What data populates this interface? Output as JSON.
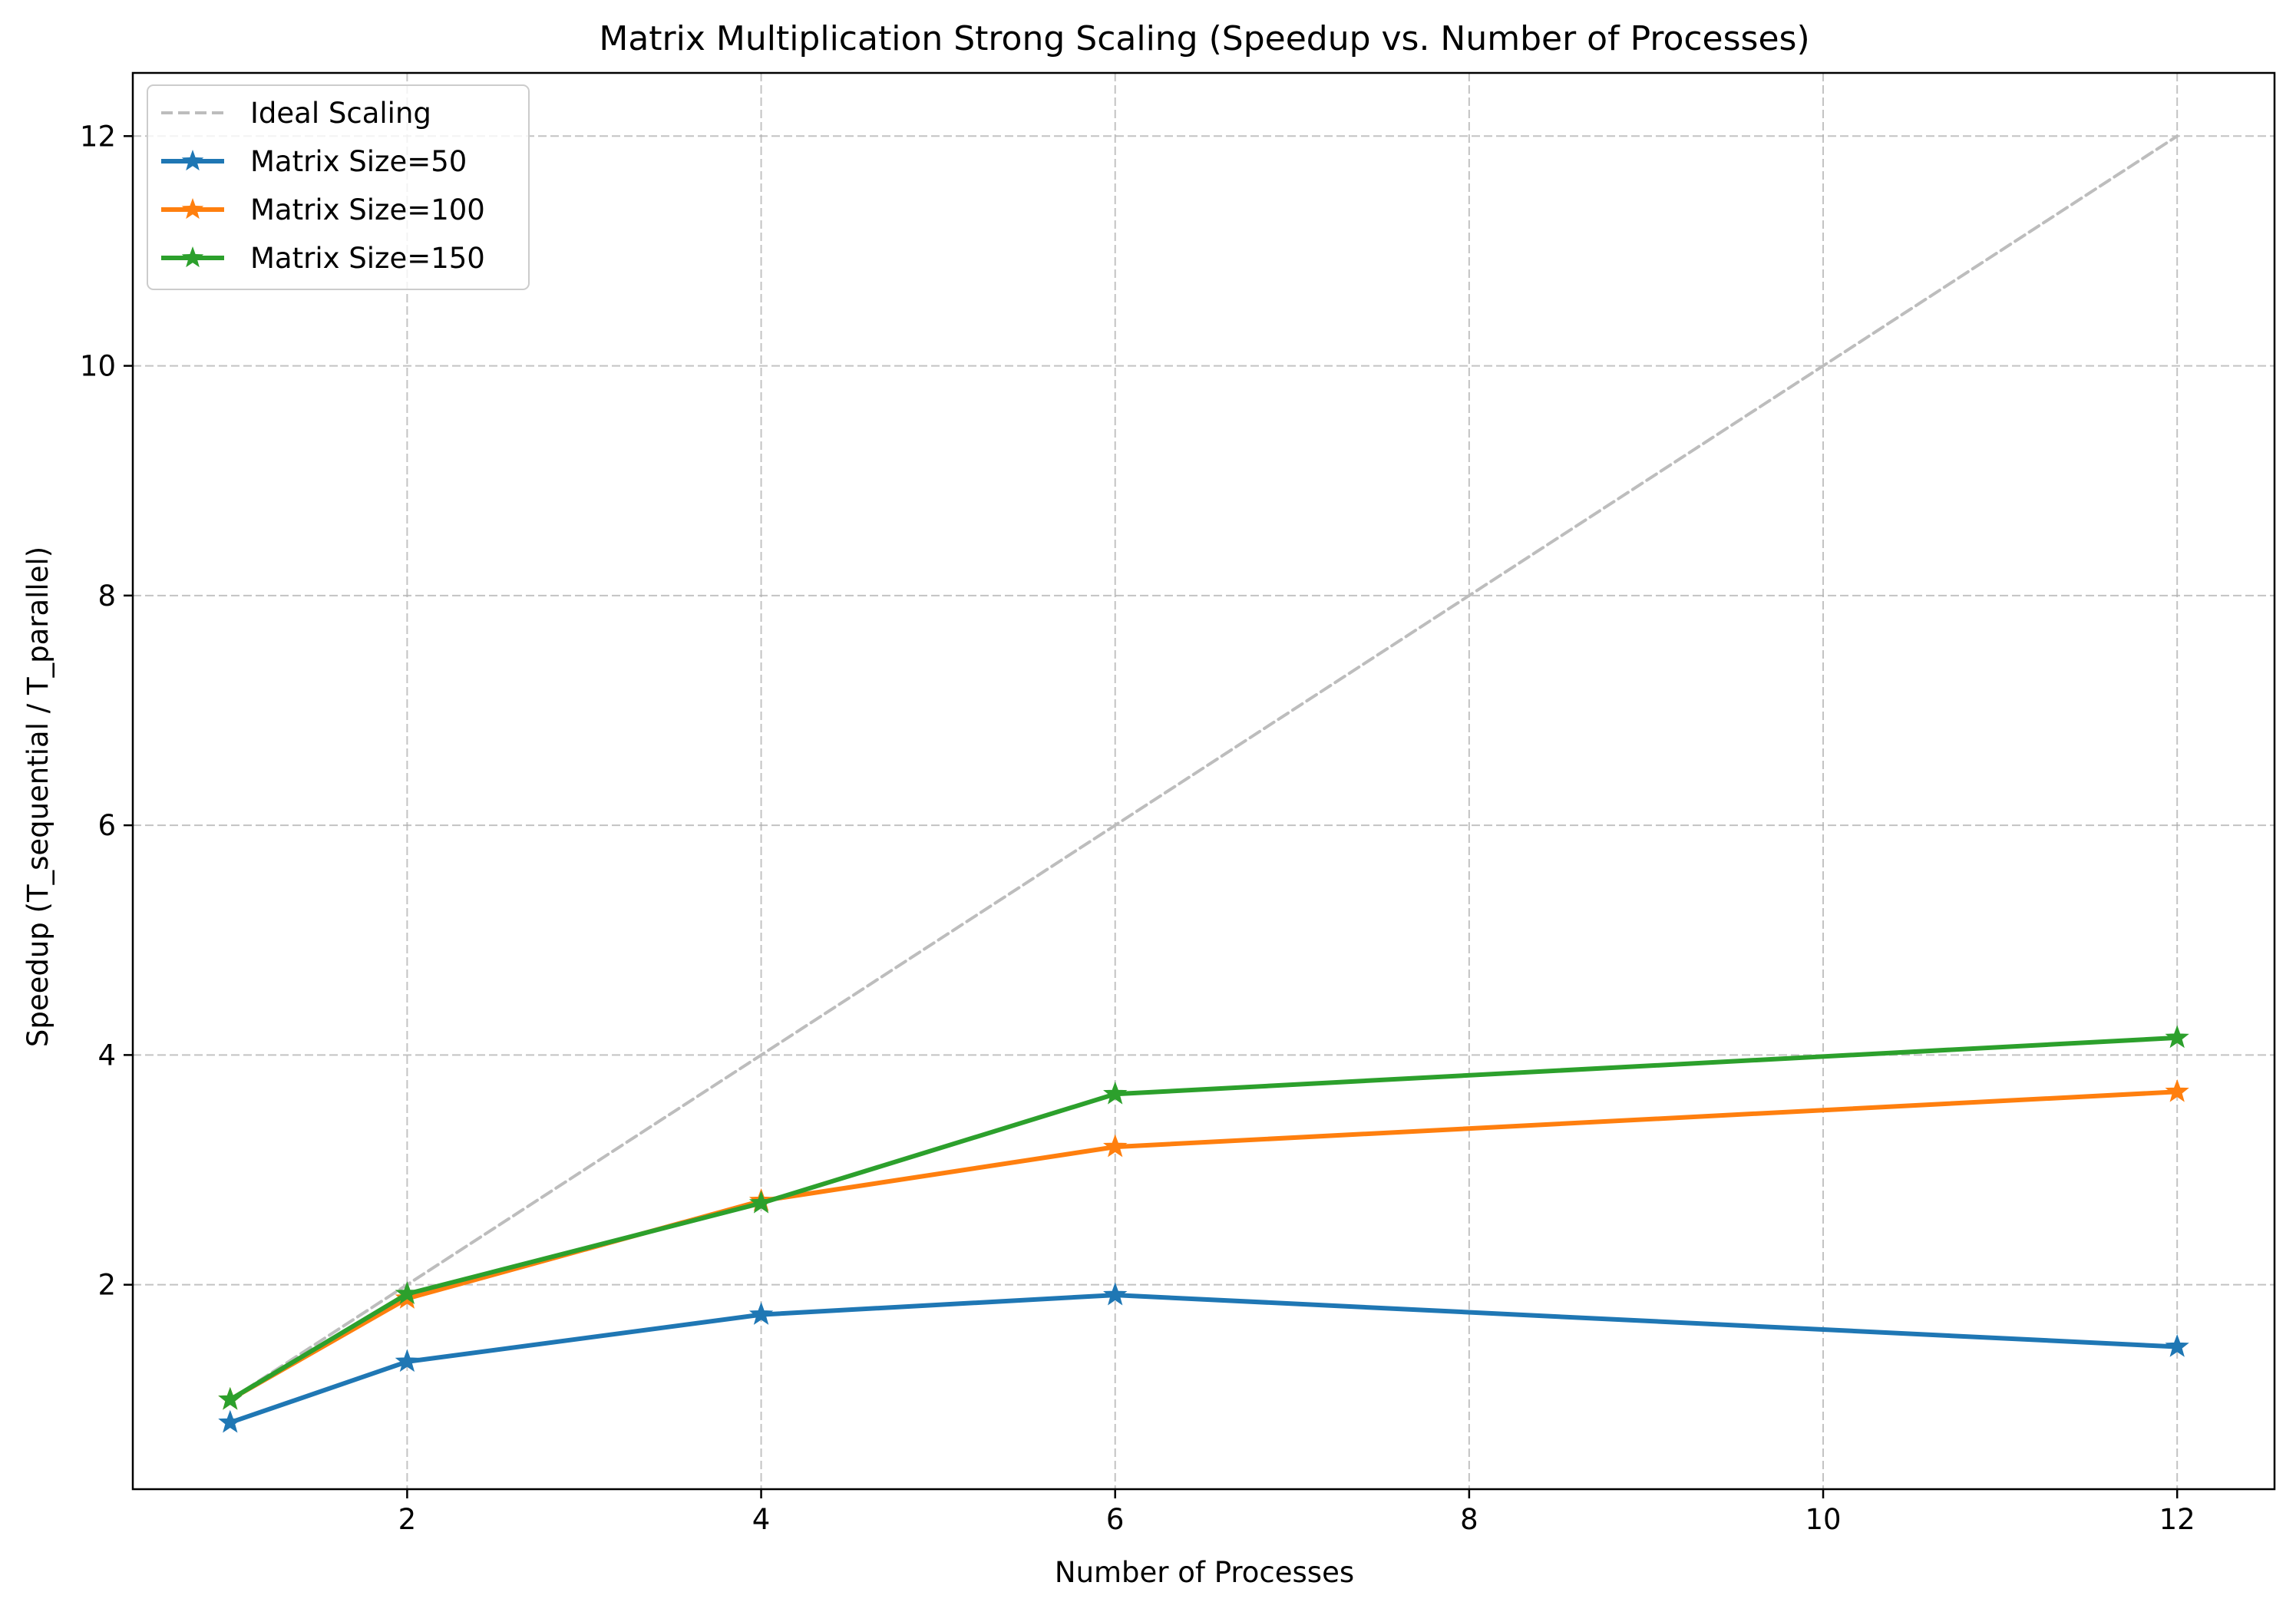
{
  "chart_data": {
    "type": "line",
    "title": "Matrix Multiplication Strong Scaling (Speedup vs. Number of Processes)",
    "xlabel": "Number of Processes",
    "ylabel": "Speedup (T_sequential / T_parallel)",
    "xlim": [
      0.45,
      12.55
    ],
    "ylim": [
      0.22,
      12.55
    ],
    "xticks": [
      2,
      4,
      6,
      8,
      10,
      12
    ],
    "yticks": [
      2,
      4,
      6,
      8,
      10,
      12
    ],
    "grid": true,
    "legend_position": "top-left",
    "x": [
      1,
      2,
      4,
      6,
      12
    ],
    "series": [
      {
        "name": "Ideal Scaling",
        "values": [
          1,
          2,
          4,
          6,
          12
        ],
        "color": "#bdbdbd",
        "style": "dashed",
        "marker": "none"
      },
      {
        "name": "Matrix Size=50",
        "values": [
          0.8,
          1.33,
          1.74,
          1.91,
          1.46
        ],
        "color": "#1f77b4",
        "style": "solid",
        "marker": "star"
      },
      {
        "name": "Matrix Size=100",
        "values": [
          1.0,
          1.88,
          2.73,
          3.2,
          3.68
        ],
        "color": "#ff7f0e",
        "style": "solid",
        "marker": "star"
      },
      {
        "name": "Matrix Size=150",
        "values": [
          1.0,
          1.92,
          2.71,
          3.66,
          4.15
        ],
        "color": "#2ca02c",
        "style": "solid",
        "marker": "star"
      }
    ]
  }
}
